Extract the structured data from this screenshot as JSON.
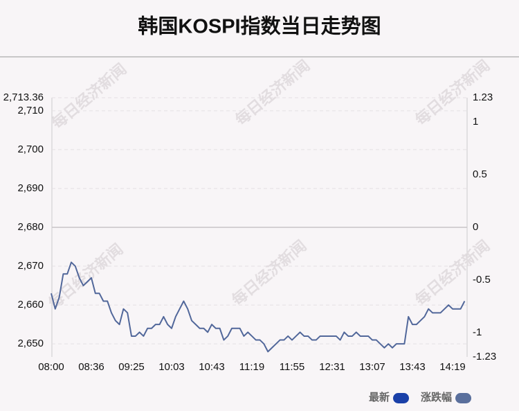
{
  "chart_data": {
    "type": "line",
    "title": "韩国KOSPI指数当日走势图",
    "watermark": "每日经济新闻",
    "categories": [
      "08:00",
      null,
      null,
      null,
      null,
      null,
      null,
      null,
      null,
      null,
      "08:36",
      null,
      null,
      null,
      null,
      null,
      null,
      null,
      null,
      null,
      "09:25",
      null,
      null,
      null,
      null,
      null,
      null,
      null,
      null,
      null,
      "10:03",
      null,
      null,
      null,
      null,
      null,
      null,
      null,
      null,
      null,
      "10:43",
      null,
      null,
      null,
      null,
      null,
      null,
      null,
      null,
      null,
      "11:19",
      null,
      null,
      null,
      null,
      null,
      null,
      null,
      null,
      null,
      "11:55",
      null,
      null,
      null,
      null,
      null,
      null,
      null,
      null,
      null,
      "12:31",
      null,
      null,
      null,
      null,
      null,
      null,
      null,
      null,
      null,
      "13:07",
      null,
      null,
      null,
      null,
      null,
      null,
      null,
      null,
      null,
      "13:43",
      null,
      null,
      null,
      null,
      null,
      null,
      null,
      null,
      null,
      "14:19",
      null,
      null,
      null
    ],
    "series": [
      {
        "name": "最新",
        "color": "#51679a",
        "values": [
          2663,
          2659,
          2662,
          2668,
          2668,
          2671,
          2670,
          2667,
          2665,
          2666,
          2667,
          2663,
          2663,
          2661,
          2661,
          2658,
          2656,
          2655,
          2659,
          2658,
          2652,
          2652,
          2653,
          2652,
          2654,
          2654,
          2655,
          2655,
          2657,
          2655,
          2654,
          2657,
          2659,
          2661,
          2659,
          2656,
          2655,
          2654,
          2654,
          2653,
          2655,
          2654,
          2654,
          2651,
          2652,
          2654,
          2654,
          2654,
          2652,
          2653,
          2652,
          2651,
          2651,
          2650,
          2648,
          2649,
          2650,
          2651,
          2651,
          2652,
          2651,
          2652,
          2653,
          2652,
          2652,
          2651,
          2651,
          2652,
          2652,
          2652,
          2652,
          2652,
          2651,
          2653,
          2652,
          2652,
          2653,
          2652,
          2652,
          2652,
          2651,
          2651,
          2650,
          2649,
          2650,
          2649,
          2650,
          2650,
          2650,
          2657,
          2655,
          2655,
          2656,
          2657,
          2659,
          2658,
          2658,
          2658,
          2659,
          2660,
          2659,
          2659,
          2659,
          2661
        ]
      }
    ],
    "legend": [
      {
        "name": "最新",
        "color": "#1a40a8"
      },
      {
        "name": "涨跌幅",
        "color": "#5a6f9c"
      }
    ],
    "ylim": [
      2646.64,
      2713.36
    ],
    "yticks": [
      {
        "value": 2650,
        "label": "2,650"
      },
      {
        "value": 2660,
        "label": "2,660"
      },
      {
        "value": 2670,
        "label": "2,670"
      },
      {
        "value": 2680,
        "label": "2,680"
      },
      {
        "value": 2690,
        "label": "2,690"
      },
      {
        "value": 2700,
        "label": "2,700"
      },
      {
        "value": 2710,
        "label": "2,710"
      },
      {
        "value": 2713.36,
        "label": "2,713.36"
      }
    ],
    "y2lim": [
      -1.23,
      1.23
    ],
    "y2ticks": [
      -1.23,
      -1,
      -0.5,
      0,
      0.5,
      1,
      1.23
    ],
    "grid": true
  }
}
